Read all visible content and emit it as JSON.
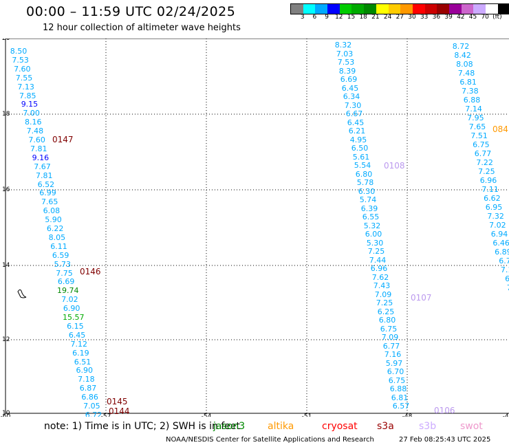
{
  "title": "00:00 – 11:59 UTC 02/24/2025",
  "subtitle": "12 hour collection of altimeter wave heights",
  "colorbar": {
    "colors": [
      "#808080",
      "#00ffff",
      "#00aaff",
      "#0000ff",
      "#00cc00",
      "#00aa00",
      "#008800",
      "#ffff00",
      "#ffcc00",
      "#ff9900",
      "#ff0000",
      "#cc0000",
      "#990000",
      "#990099",
      "#cc66cc",
      "#ccaaff",
      "#ffffff",
      "#000000"
    ],
    "labels": [
      "3",
      "6",
      "9",
      "12",
      "15",
      "18",
      "21",
      "24",
      "27",
      "30",
      "33",
      "36",
      "39",
      "42",
      "45",
      "70",
      "(ft)"
    ]
  },
  "axes": {
    "lat_ticks": [
      "20",
      "18",
      "16",
      "14",
      "12",
      "10"
    ],
    "lon_ticks": [
      "-60",
      "-57",
      "-54",
      "-51",
      "-48",
      "-45"
    ]
  },
  "tracks": [
    {
      "values": [
        "8.50",
        "7.53",
        "7.60",
        "7.55",
        "7.13",
        "7.85",
        "9.15",
        "7.00",
        "8.16",
        "7.48",
        "7.60",
        "7.81",
        "9.16",
        "7.67",
        "7.81",
        "6.52",
        "6.99",
        "7.65",
        "6.08",
        "5.90",
        "6.22",
        "8.05",
        "6.11",
        "6.59",
        "5.73",
        "7.75",
        "6.69",
        "19.74",
        "7.02",
        "6.90",
        "15.57",
        "6.15",
        "6.45",
        "7.12",
        "6.19",
        "6.51",
        "6.90",
        "7.18",
        "6.87",
        "6.86",
        "7.05",
        "6.72"
      ],
      "colors": [
        "#00aaff",
        "#00aaff",
        "#00aaff",
        "#00aaff",
        "#00aaff",
        "#00aaff",
        "#0000ff",
        "#00aaff",
        "#00aaff",
        "#00aaff",
        "#00aaff",
        "#00aaff",
        "#0000ff",
        "#00aaff",
        "#00aaff",
        "#00aaff",
        "#00aaff",
        "#00aaff",
        "#00aaff",
        "#00aaff",
        "#00aaff",
        "#00aaff",
        "#00aaff",
        "#00aaff",
        "#00aaff",
        "#00aaff",
        "#00aaff",
        "#008800",
        "#00aaff",
        "#00aaff",
        "#00aa00",
        "#00aaff",
        "#00aaff",
        "#00aaff",
        "#00aaff",
        "#00aaff",
        "#00aaff",
        "#00aaff",
        "#00aaff",
        "#00aaff",
        "#00aaff",
        "#00aaff"
      ]
    },
    {
      "values": [
        "8.32",
        "7.03",
        "7.53",
        "8.39",
        "6.69",
        "6.45",
        "6.34",
        "7.30",
        "6.67",
        "6.45",
        "6.21",
        "4.95",
        "6.50",
        "5.61",
        "5.54",
        "6.80",
        "5.78",
        "6.30",
        "5.74",
        "6.39",
        "6.55",
        "5.32",
        "6.00",
        "5.30",
        "7.25",
        "7.44",
        "6.96",
        "7.62",
        "7.43",
        "7.09",
        "7.25",
        "6.25",
        "6.80",
        "6.75",
        "7.09",
        "6.77",
        "7.16",
        "5.97",
        "6.70",
        "6.75",
        "6.88",
        "6.81",
        "6.57"
      ],
      "colors": "#00aaff"
    },
    {
      "values": [
        "8.72",
        "8.42",
        "8.08",
        "7.48",
        "6.81",
        "7.38",
        "6.88",
        "7.14",
        "7.95",
        "7.65",
        "7.51",
        "6.75",
        "6.77",
        "7.22",
        "7.25",
        "6.96",
        "7.11",
        "6.62",
        "6.95",
        "7.32",
        "7.02",
        "6.94",
        "6.46",
        "6.89",
        "6.7",
        "7.1",
        "6.",
        "7."
      ],
      "colors": "#00aaff"
    }
  ],
  "pass_labels": [
    {
      "text": "0147",
      "color": "#800000"
    },
    {
      "text": "0146",
      "color": "#800000"
    },
    {
      "text": "0145",
      "color": "#800000"
    },
    {
      "text": "0144",
      "color": "#800000"
    },
    {
      "text": "0108",
      "color": "#bb99ee"
    },
    {
      "text": "0107",
      "color": "#bb99ee"
    },
    {
      "text": "0106",
      "color": "#bb99ee"
    },
    {
      "text": "084",
      "color": "#ff9900"
    }
  ],
  "note": "note: 1) Time is in UTC; 2) SWH is in feet",
  "legend": [
    {
      "label": "jason3",
      "color": "#008800"
    },
    {
      "label": "altika",
      "color": "#ff9900"
    },
    {
      "label": "cryosat",
      "color": "#ff0000"
    },
    {
      "label": "s3a",
      "color": "#990000"
    },
    {
      "label": "s3b",
      "color": "#ccaaff"
    },
    {
      "label": "swot",
      "color": "#ee99cc"
    }
  ],
  "credit": "NOAA/NESDIS Center for Satellite Applications and Research",
  "timestamp": "27 Feb 08:25:43 UTC 2025"
}
